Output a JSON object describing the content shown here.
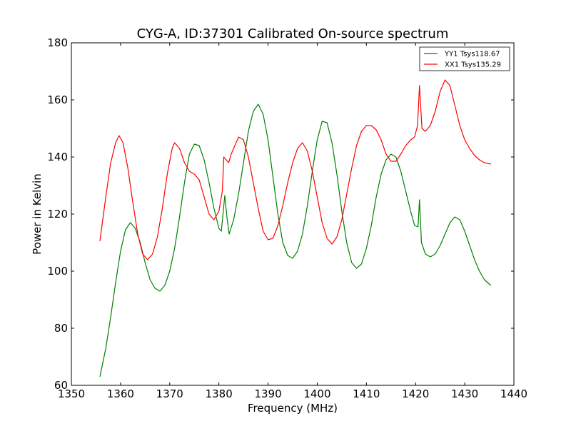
{
  "chart_data": {
    "type": "line",
    "title": "CYG-A, ID:37301 Calibrated On-source spectrum",
    "xlabel": "Frequency (MHz)",
    "ylabel": "Power in Kelvin",
    "xlim": [
      1350,
      1440
    ],
    "ylim": [
      60,
      180
    ],
    "xticks": [
      1350,
      1360,
      1370,
      1380,
      1390,
      1400,
      1410,
      1420,
      1430,
      1440
    ],
    "yticks": [
      60,
      80,
      100,
      120,
      140,
      160,
      180
    ],
    "grid": false,
    "legend_position": "top-right",
    "series": [
      {
        "name": "YY1 Tsys118.67",
        "color": "#008000",
        "points": [
          [
            1355.8,
            63
          ],
          [
            1357,
            73
          ],
          [
            1358,
            84
          ],
          [
            1359,
            96
          ],
          [
            1360,
            107
          ],
          [
            1361,
            114.5
          ],
          [
            1362,
            117
          ],
          [
            1363,
            115
          ],
          [
            1364,
            110
          ],
          [
            1365,
            103
          ],
          [
            1366,
            97
          ],
          [
            1367,
            94
          ],
          [
            1368,
            93
          ],
          [
            1369,
            95
          ],
          [
            1370,
            100
          ],
          [
            1371,
            108
          ],
          [
            1372,
            119
          ],
          [
            1373,
            131
          ],
          [
            1374,
            141
          ],
          [
            1375,
            144.5
          ],
          [
            1376,
            144
          ],
          [
            1377,
            139
          ],
          [
            1378,
            131
          ],
          [
            1379,
            122
          ],
          [
            1380,
            115
          ],
          [
            1380.5,
            114
          ],
          [
            1381.2,
            126.5
          ],
          [
            1381.7,
            118
          ],
          [
            1382.1,
            113
          ],
          [
            1383,
            118
          ],
          [
            1384,
            127
          ],
          [
            1385,
            138
          ],
          [
            1386,
            149
          ],
          [
            1387,
            156
          ],
          [
            1388,
            158.5
          ],
          [
            1389,
            155
          ],
          [
            1390,
            146
          ],
          [
            1391,
            133
          ],
          [
            1392,
            120
          ],
          [
            1393,
            110
          ],
          [
            1394,
            105.5
          ],
          [
            1395,
            104.5
          ],
          [
            1396,
            107
          ],
          [
            1397,
            113
          ],
          [
            1398,
            123
          ],
          [
            1399,
            135
          ],
          [
            1400,
            146
          ],
          [
            1401,
            152.5
          ],
          [
            1402,
            152
          ],
          [
            1403,
            145
          ],
          [
            1404,
            134
          ],
          [
            1405,
            121
          ],
          [
            1406,
            110
          ],
          [
            1407,
            103
          ],
          [
            1408,
            101
          ],
          [
            1409,
            102.5
          ],
          [
            1410,
            108
          ],
          [
            1411,
            116
          ],
          [
            1412,
            126
          ],
          [
            1413,
            134
          ],
          [
            1414,
            139
          ],
          [
            1415,
            141
          ],
          [
            1416,
            140
          ],
          [
            1417,
            135
          ],
          [
            1418,
            128
          ],
          [
            1419,
            121
          ],
          [
            1419.8,
            116
          ],
          [
            1420.5,
            115.5
          ],
          [
            1420.8,
            125
          ],
          [
            1421.2,
            110
          ],
          [
            1422,
            106
          ],
          [
            1423,
            105
          ],
          [
            1424,
            106
          ],
          [
            1425,
            109
          ],
          [
            1426,
            113
          ],
          [
            1427,
            117
          ],
          [
            1428,
            119
          ],
          [
            1429,
            118
          ],
          [
            1430,
            114
          ],
          [
            1431,
            109
          ],
          [
            1432,
            104
          ],
          [
            1433,
            100
          ],
          [
            1434,
            97
          ],
          [
            1435.3,
            95
          ]
        ]
      },
      {
        "name": "XX1 Tsys135.29",
        "color": "#ff0000",
        "points": [
          [
            1355.8,
            110.5
          ],
          [
            1357,
            126
          ],
          [
            1358,
            138
          ],
          [
            1359,
            145
          ],
          [
            1359.7,
            147.5
          ],
          [
            1360.5,
            145
          ],
          [
            1361.5,
            136
          ],
          [
            1362.5,
            124
          ],
          [
            1363.5,
            113
          ],
          [
            1364.5,
            106
          ],
          [
            1365.5,
            104
          ],
          [
            1366.5,
            106
          ],
          [
            1367.5,
            112
          ],
          [
            1368.5,
            122
          ],
          [
            1369.5,
            134
          ],
          [
            1370.5,
            143
          ],
          [
            1371,
            145
          ],
          [
            1372,
            143
          ],
          [
            1373,
            138
          ],
          [
            1374,
            135
          ],
          [
            1375,
            134
          ],
          [
            1376,
            132
          ],
          [
            1377,
            126
          ],
          [
            1378,
            120
          ],
          [
            1379,
            118
          ],
          [
            1380,
            121
          ],
          [
            1380.7,
            128
          ],
          [
            1381,
            140
          ],
          [
            1382,
            138
          ],
          [
            1382.5,
            141
          ],
          [
            1383,
            143
          ],
          [
            1384,
            147
          ],
          [
            1385,
            146
          ],
          [
            1386,
            140
          ],
          [
            1387,
            131
          ],
          [
            1388,
            122
          ],
          [
            1389,
            114
          ],
          [
            1390,
            111
          ],
          [
            1391,
            111.5
          ],
          [
            1392,
            116
          ],
          [
            1393,
            123
          ],
          [
            1394,
            131
          ],
          [
            1395,
            138
          ],
          [
            1396,
            143
          ],
          [
            1397,
            145
          ],
          [
            1398,
            142
          ],
          [
            1399,
            135
          ],
          [
            1400,
            126
          ],
          [
            1401,
            117
          ],
          [
            1402,
            111.5
          ],
          [
            1403,
            109.5
          ],
          [
            1404,
            112
          ],
          [
            1405,
            118
          ],
          [
            1406,
            127
          ],
          [
            1407,
            136
          ],
          [
            1408,
            144
          ],
          [
            1409,
            149
          ],
          [
            1410,
            151
          ],
          [
            1411,
            151
          ],
          [
            1412,
            149.5
          ],
          [
            1413,
            146
          ],
          [
            1414,
            141
          ],
          [
            1415,
            138.5
          ],
          [
            1416,
            138.5
          ],
          [
            1417,
            141
          ],
          [
            1418,
            144
          ],
          [
            1419,
            146
          ],
          [
            1419.8,
            147
          ],
          [
            1420.4,
            151
          ],
          [
            1420.8,
            165
          ],
          [
            1421.3,
            150
          ],
          [
            1422,
            149
          ],
          [
            1423,
            151
          ],
          [
            1424,
            156
          ],
          [
            1425,
            163
          ],
          [
            1426,
            167
          ],
          [
            1427,
            165
          ],
          [
            1428,
            158
          ],
          [
            1429,
            151
          ],
          [
            1430,
            146
          ],
          [
            1431,
            143
          ],
          [
            1432,
            140.5
          ],
          [
            1433,
            139
          ],
          [
            1434,
            138
          ],
          [
            1435.3,
            137.5
          ]
        ]
      }
    ]
  }
}
